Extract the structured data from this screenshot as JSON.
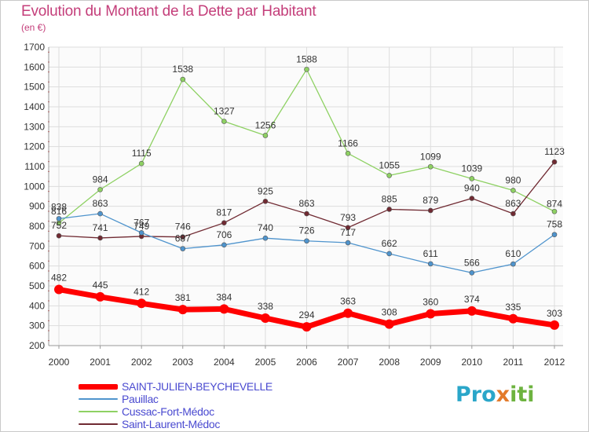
{
  "chart_data": {
    "type": "line",
    "title": "Evolution du Montant de la Dette par Habitant",
    "subtitle": "(en €)",
    "x": [
      "2000",
      "2001",
      "2002",
      "2003",
      "2004",
      "2005",
      "2006",
      "2007",
      "2008",
      "2009",
      "2010",
      "2011",
      "2012"
    ],
    "ylim": [
      200,
      1700
    ],
    "yticks": [
      200,
      300,
      400,
      500,
      600,
      700,
      800,
      900,
      1000,
      1100,
      1200,
      1300,
      1400,
      1500,
      1600,
      1700
    ],
    "grid": true,
    "legend_position": "bottom-left",
    "series": [
      {
        "name": "SAINT-JULIEN-BEYCHEVELLE",
        "color": "#ff0000",
        "values": [
          482,
          445,
          412,
          381,
          384,
          338,
          294,
          363,
          308,
          360,
          374,
          335,
          303
        ]
      },
      {
        "name": "Pauillac",
        "color": "#4f94cd",
        "values": [
          838,
          863,
          767,
          687,
          706,
          740,
          726,
          717,
          662,
          611,
          566,
          610,
          758
        ]
      },
      {
        "name": "Cussac-Fort-Médoc",
        "color": "#8ed163",
        "values": [
          816,
          984,
          1115,
          1538,
          1327,
          1256,
          1588,
          1166,
          1055,
          1099,
          1039,
          980,
          874
        ]
      },
      {
        "name": "Saint-Laurent-Médoc",
        "color": "#702a32",
        "values": [
          752,
          741,
          749,
          746,
          817,
          925,
          863,
          793,
          885,
          879,
          940,
          863,
          1123
        ]
      }
    ]
  },
  "logo": {
    "text": "Proxiti",
    "c1": "Pro",
    "c2": "x",
    "c3": "iti"
  }
}
